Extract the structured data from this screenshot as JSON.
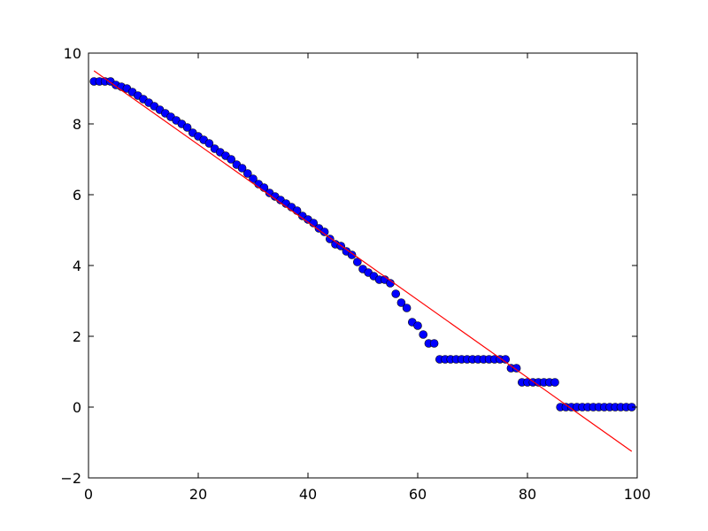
{
  "chart_data": {
    "type": "scatter",
    "title": "",
    "xlabel": "",
    "ylabel": "",
    "xlim": [
      0,
      100
    ],
    "ylim": [
      -2,
      10
    ],
    "xticks": [
      0,
      20,
      40,
      60,
      80,
      100
    ],
    "yticks": [
      -2,
      0,
      2,
      4,
      6,
      8,
      10
    ],
    "xtick_labels": [
      "0",
      "20",
      "40",
      "60",
      "80",
      "100"
    ],
    "ytick_labels": [
      "−2",
      "0",
      "2",
      "4",
      "6",
      "8",
      "10"
    ],
    "grid": false,
    "legend": "none",
    "series": [
      {
        "type": "scatter",
        "color": "#0000ff",
        "x": [
          1,
          2,
          3,
          4,
          5,
          6,
          7,
          8,
          9,
          10,
          11,
          12,
          13,
          14,
          15,
          16,
          17,
          18,
          19,
          20,
          21,
          22,
          23,
          24,
          25,
          26,
          27,
          28,
          29,
          30,
          31,
          32,
          33,
          34,
          35,
          36,
          37,
          38,
          39,
          40,
          41,
          42,
          43,
          44,
          45,
          46,
          47,
          48,
          49,
          50,
          51,
          52,
          53,
          54,
          55,
          56,
          57,
          58,
          59,
          60,
          61,
          62,
          63,
          64,
          65,
          66,
          67,
          68,
          69,
          70,
          71,
          72,
          73,
          74,
          75,
          76,
          77,
          78,
          79,
          80,
          81,
          82,
          83,
          84,
          85,
          86,
          87,
          88,
          89,
          90,
          91,
          92,
          93,
          94,
          95,
          96,
          97,
          98,
          99
        ],
        "y": [
          9.2,
          9.2,
          9.2,
          9.2,
          9.1,
          9.05,
          9.0,
          8.9,
          8.8,
          8.7,
          8.6,
          8.5,
          8.4,
          8.3,
          8.2,
          8.1,
          8.0,
          7.9,
          7.75,
          7.65,
          7.55,
          7.45,
          7.3,
          7.2,
          7.1,
          7.0,
          6.85,
          6.75,
          6.6,
          6.45,
          6.3,
          6.2,
          6.05,
          5.95,
          5.85,
          5.75,
          5.65,
          5.55,
          5.4,
          5.3,
          5.2,
          5.05,
          4.95,
          4.75,
          4.6,
          4.55,
          4.4,
          4.3,
          4.1,
          3.9,
          3.8,
          3.7,
          3.6,
          3.6,
          3.5,
          3.2,
          2.95,
          2.8,
          2.4,
          2.3,
          2.05,
          1.8,
          1.8,
          1.35,
          1.35,
          1.35,
          1.35,
          1.35,
          1.35,
          1.35,
          1.35,
          1.35,
          1.35,
          1.35,
          1.35,
          1.35,
          1.1,
          1.1,
          0.7,
          0.7,
          0.7,
          0.7,
          0.7,
          0.7,
          0.7,
          0.0,
          0.0,
          0.0,
          0.0,
          0.0,
          0.0,
          0.0,
          0.0,
          0.0,
          0.0,
          0.0,
          0.0,
          0.0,
          0.0
        ]
      },
      {
        "type": "line",
        "color": "#ff0000",
        "x": [
          1,
          99
        ],
        "y": [
          9.5,
          -1.25
        ]
      }
    ]
  }
}
